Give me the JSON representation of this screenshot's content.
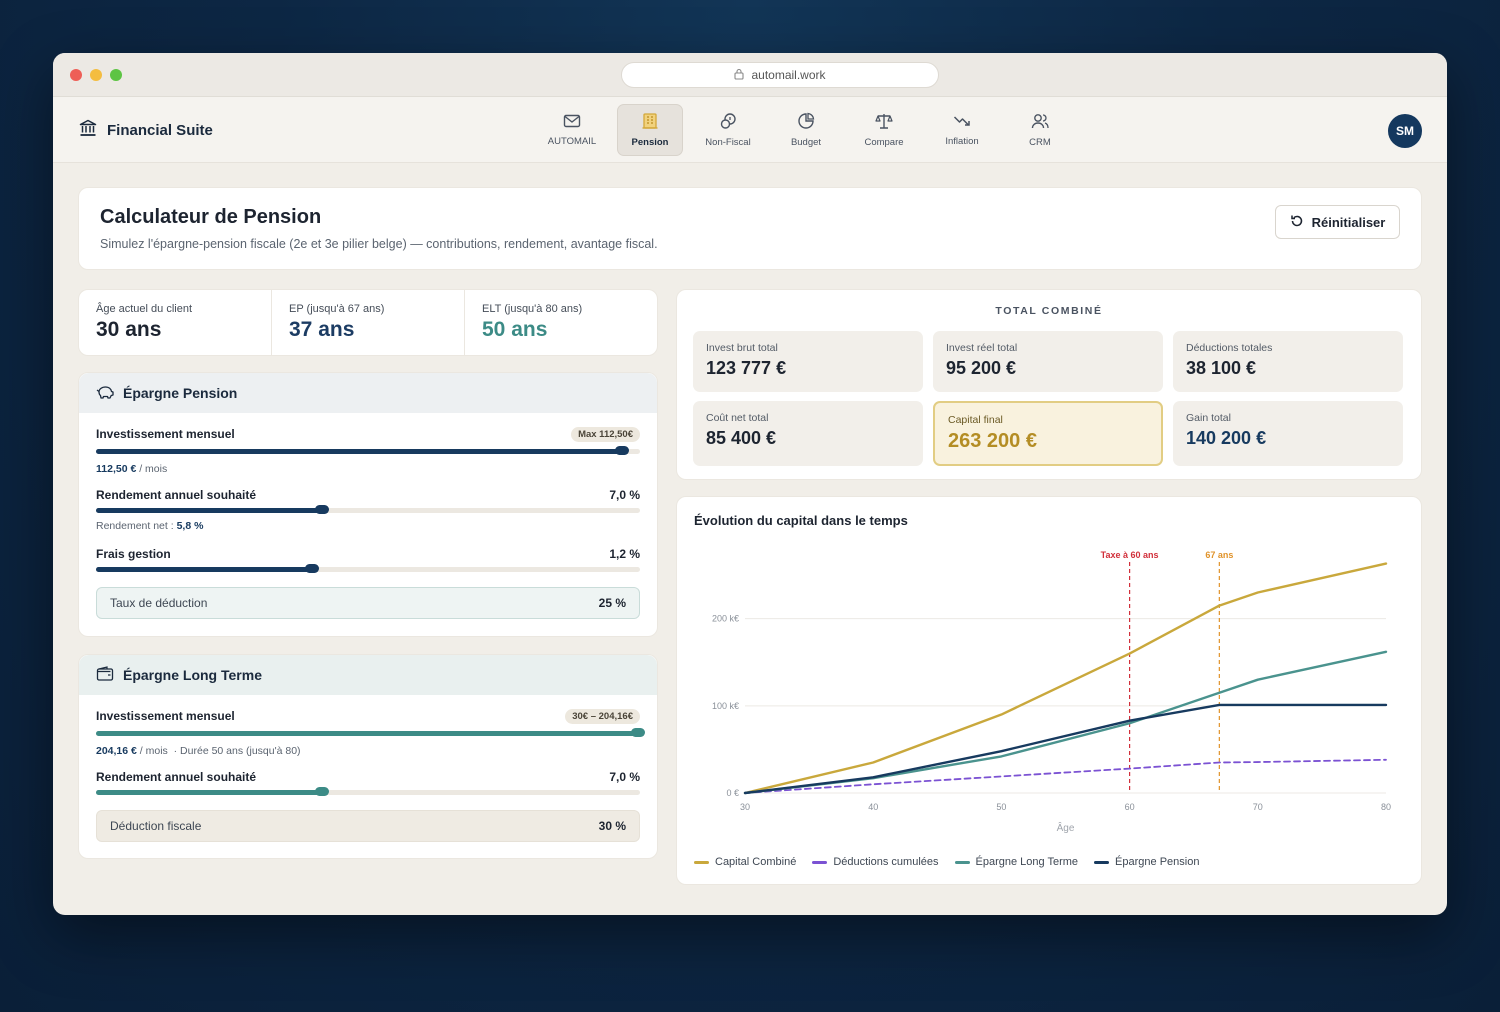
{
  "browser": {
    "url": "automail.work"
  },
  "app": {
    "brand": "Financial Suite",
    "user_initials": "SM"
  },
  "nav": [
    {
      "label": "AUTOMAIL",
      "icon": "mail-icon"
    },
    {
      "label": "Pension",
      "icon": "building-icon"
    },
    {
      "label": "Non-Fiscal",
      "icon": "coins-icon"
    },
    {
      "label": "Budget",
      "icon": "pie-chart-icon"
    },
    {
      "label": "Compare",
      "icon": "scale-icon"
    },
    {
      "label": "Inflation",
      "icon": "trending-down-icon"
    },
    {
      "label": "CRM",
      "icon": "users-icon"
    }
  ],
  "header": {
    "title": "Calculateur de Pension",
    "subtitle": "Simulez l'épargne-pension fiscale (2e et 3e pilier belge) — contributions, rendement, avantage fiscal.",
    "reset_label": "Réinitialiser"
  },
  "ages": [
    {
      "label": "Âge actuel du client",
      "value": "30 ans",
      "color": "#1d2430"
    },
    {
      "label": "EP (jusqu'à 67 ans)",
      "value": "37 ans",
      "color": "#1c3c63"
    },
    {
      "label": "ELT (jusqu'à 80 ans)",
      "value": "50 ans",
      "color": "#3c8b86"
    }
  ],
  "ep": {
    "title": "Épargne Pension",
    "invest_label": "Investissement mensuel",
    "invest_badge": "Max 112,50€",
    "invest_value": "112,50 €",
    "invest_unit": " / mois",
    "invest_level": 0.97,
    "rendement_label": "Rendement annuel souhaité",
    "rendement_value": "7,0 %",
    "rendement_level": 0.42,
    "rendement_net_label": "Rendement net : ",
    "rendement_net_value": "5,8 %",
    "frais_label": "Frais gestion",
    "frais_value": "1,2 %",
    "frais_level": 0.4,
    "deduction_label": "Taux de déduction",
    "deduction_value": "25 %"
  },
  "elt": {
    "title": "Épargne Long Terme",
    "invest_label": "Investissement mensuel",
    "invest_badge": "30€ – 204,16€",
    "invest_value": "204,16 €",
    "invest_unit": " / mois",
    "duree": "·  Durée 50 ans (jusqu'à 80)",
    "invest_level": 1.0,
    "rendement_label": "Rendement annuel souhaité",
    "rendement_value": "7,0 %",
    "rendement_level": 0.42,
    "deduction_label": "Déduction fiscale",
    "deduction_value": "30 %"
  },
  "totals": {
    "title": "TOTAL COMBINÉ",
    "items": [
      {
        "label": "Invest brut total",
        "value": "123 777 €"
      },
      {
        "label": "Invest réel total",
        "value": "95 200 €"
      },
      {
        "label": "Déductions totales",
        "value": "38 100 €"
      },
      {
        "label": "Coût net total",
        "value": "85 400 €"
      },
      {
        "label": "Capital final",
        "value": "263 200 €",
        "highlight": true
      },
      {
        "label": "Gain total",
        "value": "140 200 €"
      }
    ]
  },
  "chart_data": {
    "type": "line",
    "title": "Évolution du capital dans le temps",
    "xlabel": "Âge",
    "ylabel": "",
    "x": [
      30,
      40,
      50,
      60,
      67,
      70,
      80
    ],
    "xticks": [
      "30",
      "40",
      "50",
      "60",
      "70",
      "80"
    ],
    "yticks": [
      "0 €",
      "100 k€",
      "200 k€"
    ],
    "xlim": [
      30,
      80
    ],
    "ylim": [
      0,
      265000
    ],
    "grid": true,
    "legend_position": "bottom",
    "series": [
      {
        "name": "Capital Combiné",
        "color": "#c9a83c",
        "dashed": false,
        "values": [
          0,
          35000,
          90000,
          160000,
          215000,
          230000,
          263200
        ]
      },
      {
        "name": "Déductions cumulées",
        "color": "#7b52d3",
        "dashed": true,
        "values": [
          0,
          10000,
          19000,
          28000,
          35000,
          35500,
          38100
        ]
      },
      {
        "name": "Épargne Long Terme",
        "color": "#4a938e",
        "dashed": false,
        "values": [
          0,
          17000,
          42000,
          80000,
          115000,
          130000,
          162000
        ]
      },
      {
        "name": "Épargne Pension",
        "color": "#173a5f",
        "dashed": false,
        "values": [
          0,
          18000,
          48000,
          83000,
          101000,
          101000,
          101000
        ]
      }
    ],
    "annotations": [
      {
        "x": 60,
        "label": "Taxe à 60 ans",
        "color": "#d12f3a"
      },
      {
        "x": 67,
        "label": "67 ans",
        "color": "#e0932a"
      }
    ]
  }
}
